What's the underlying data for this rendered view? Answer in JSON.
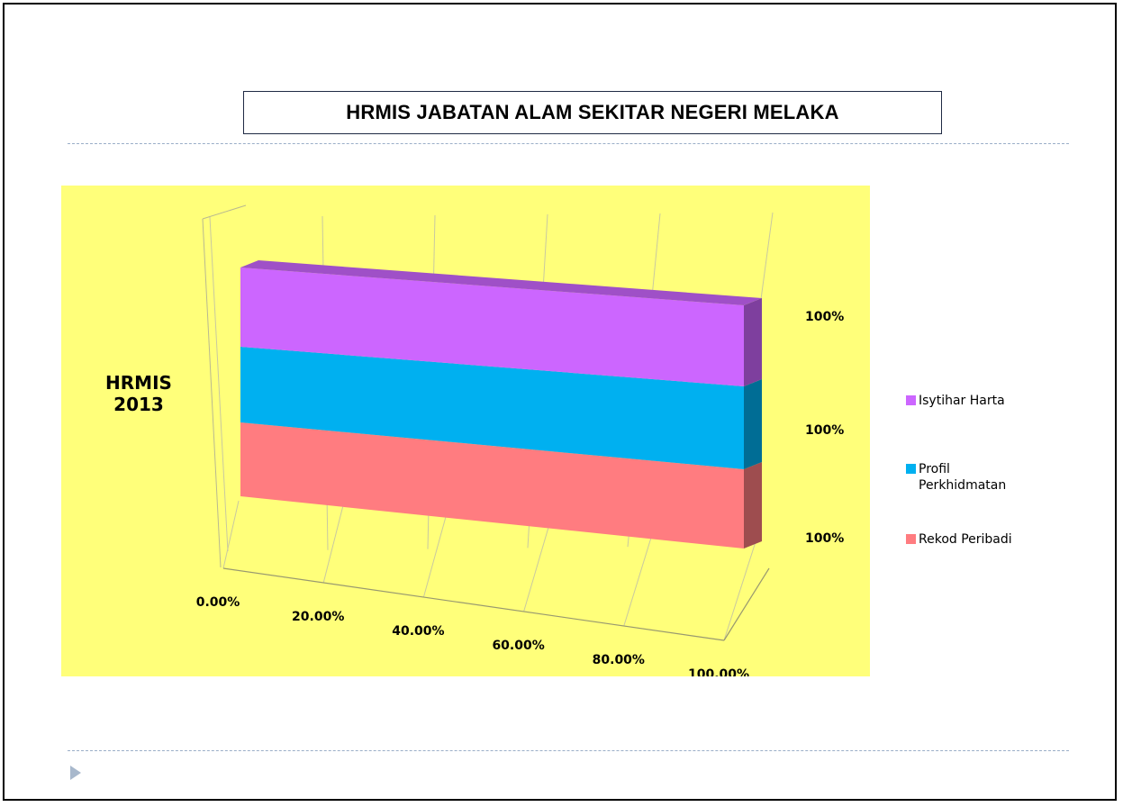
{
  "slide": {
    "title": "HRMIS JABATAN ALAM SEKITAR NEGERI MELAKA"
  },
  "colors": {
    "chart_background": "#ffff7a",
    "isytihar_harta": "#cc66ff",
    "profil_perkhidmatan": "#00b0f0",
    "rekod_peribadi": "#ff7c80",
    "bullet_arrow": "#a8b8cc",
    "rule": "#9aaec8"
  },
  "chart_data": {
    "type": "bar",
    "orientation": "horizontal",
    "stacked": "100%",
    "three_d": true,
    "categories": [
      "HRMIS 2013"
    ],
    "category_label_lines": [
      "HRMIS",
      "2013"
    ],
    "series": [
      {
        "name": "Rekod Peribadi",
        "values": [
          1.0
        ],
        "label": "100%",
        "color": "#ff7c80"
      },
      {
        "name": "Profil Perkhidmatan",
        "values": [
          1.0
        ],
        "label": "100%",
        "color": "#00b0f0"
      },
      {
        "name": "Isytihar Harta",
        "values": [
          1.0
        ],
        "label": "100%",
        "color": "#cc66ff"
      }
    ],
    "x_ticks": [
      "0.00%",
      "20.00%",
      "40.00%",
      "60.00%",
      "80.00%",
      "100.00%"
    ],
    "xlim": [
      0,
      1
    ],
    "grid": true,
    "legend_position": "right",
    "legend": [
      {
        "label": "Isytihar Harta",
        "lines": [
          "Isytihar Harta"
        ],
        "color": "#cc66ff"
      },
      {
        "label": "Profil Perkhidmatan",
        "lines": [
          "Profil",
          "Perkhidmatan"
        ],
        "color": "#00b0f0"
      },
      {
        "label": "Rekod Peribadi",
        "lines": [
          "Rekod Peribadi"
        ],
        "color": "#ff7c80"
      }
    ]
  }
}
